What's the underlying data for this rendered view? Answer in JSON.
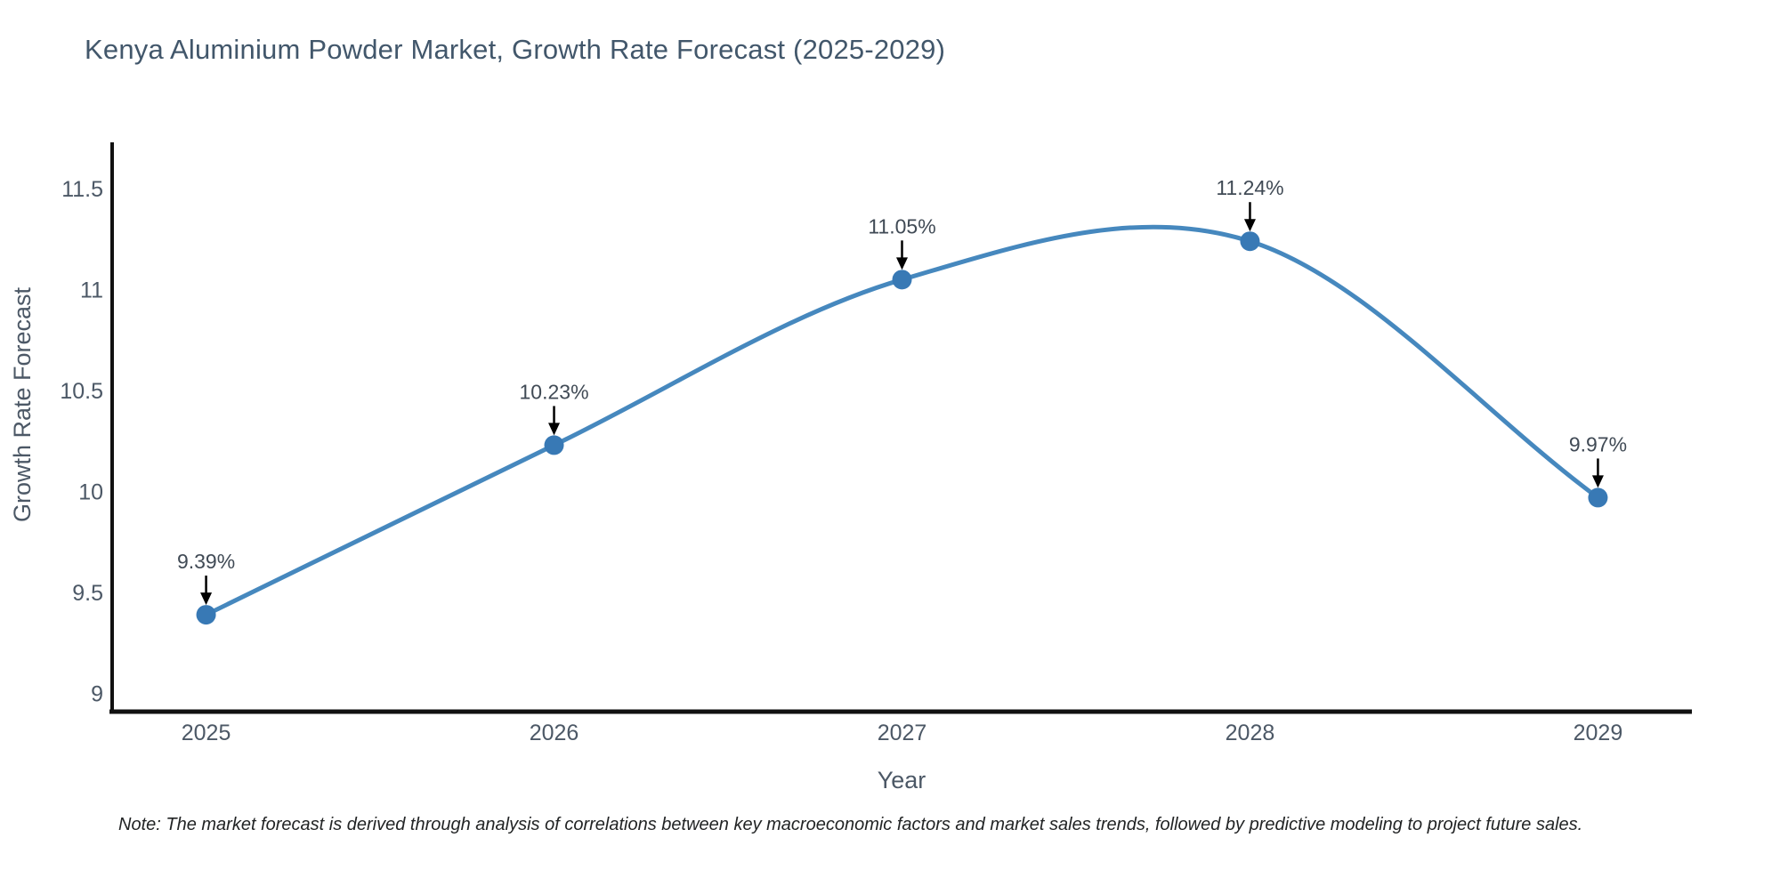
{
  "title": "Kenya Aluminium Powder Market, Growth Rate Forecast (2025-2029)",
  "note": "Note: The market forecast is derived through analysis of correlations between key macroeconomic factors and market sales trends, followed by predictive modeling to project future sales.",
  "chart_data": {
    "type": "line",
    "title": "Kenya Aluminium Powder Market, Growth Rate Forecast (2025-2029)",
    "xlabel": "Year",
    "ylabel": "Growth Rate Forecast",
    "x": [
      2025,
      2026,
      2027,
      2028,
      2029
    ],
    "values": [
      9.39,
      10.23,
      11.05,
      11.24,
      9.97
    ],
    "point_labels": [
      "9.39%",
      "10.23%",
      "11.05%",
      "11.24%",
      "9.97%"
    ],
    "x_ticks": [
      "2025",
      "2026",
      "2027",
      "2028",
      "2029"
    ],
    "y_ticks": [
      9,
      9.5,
      10,
      10.5,
      11,
      11.5
    ],
    "xlim": [
      2024.73,
      2029.27
    ],
    "ylim": [
      8.91,
      11.73
    ],
    "grid": false,
    "legend": "none",
    "line_shape": "spline",
    "colors": {
      "line": "#4688be",
      "marker": "#3879b5",
      "axis": "#111111",
      "annotation_text": "#404a55",
      "annotation_arrow": "#000000",
      "tick_text": "#4c5866",
      "title_text": "#42576b"
    }
  }
}
